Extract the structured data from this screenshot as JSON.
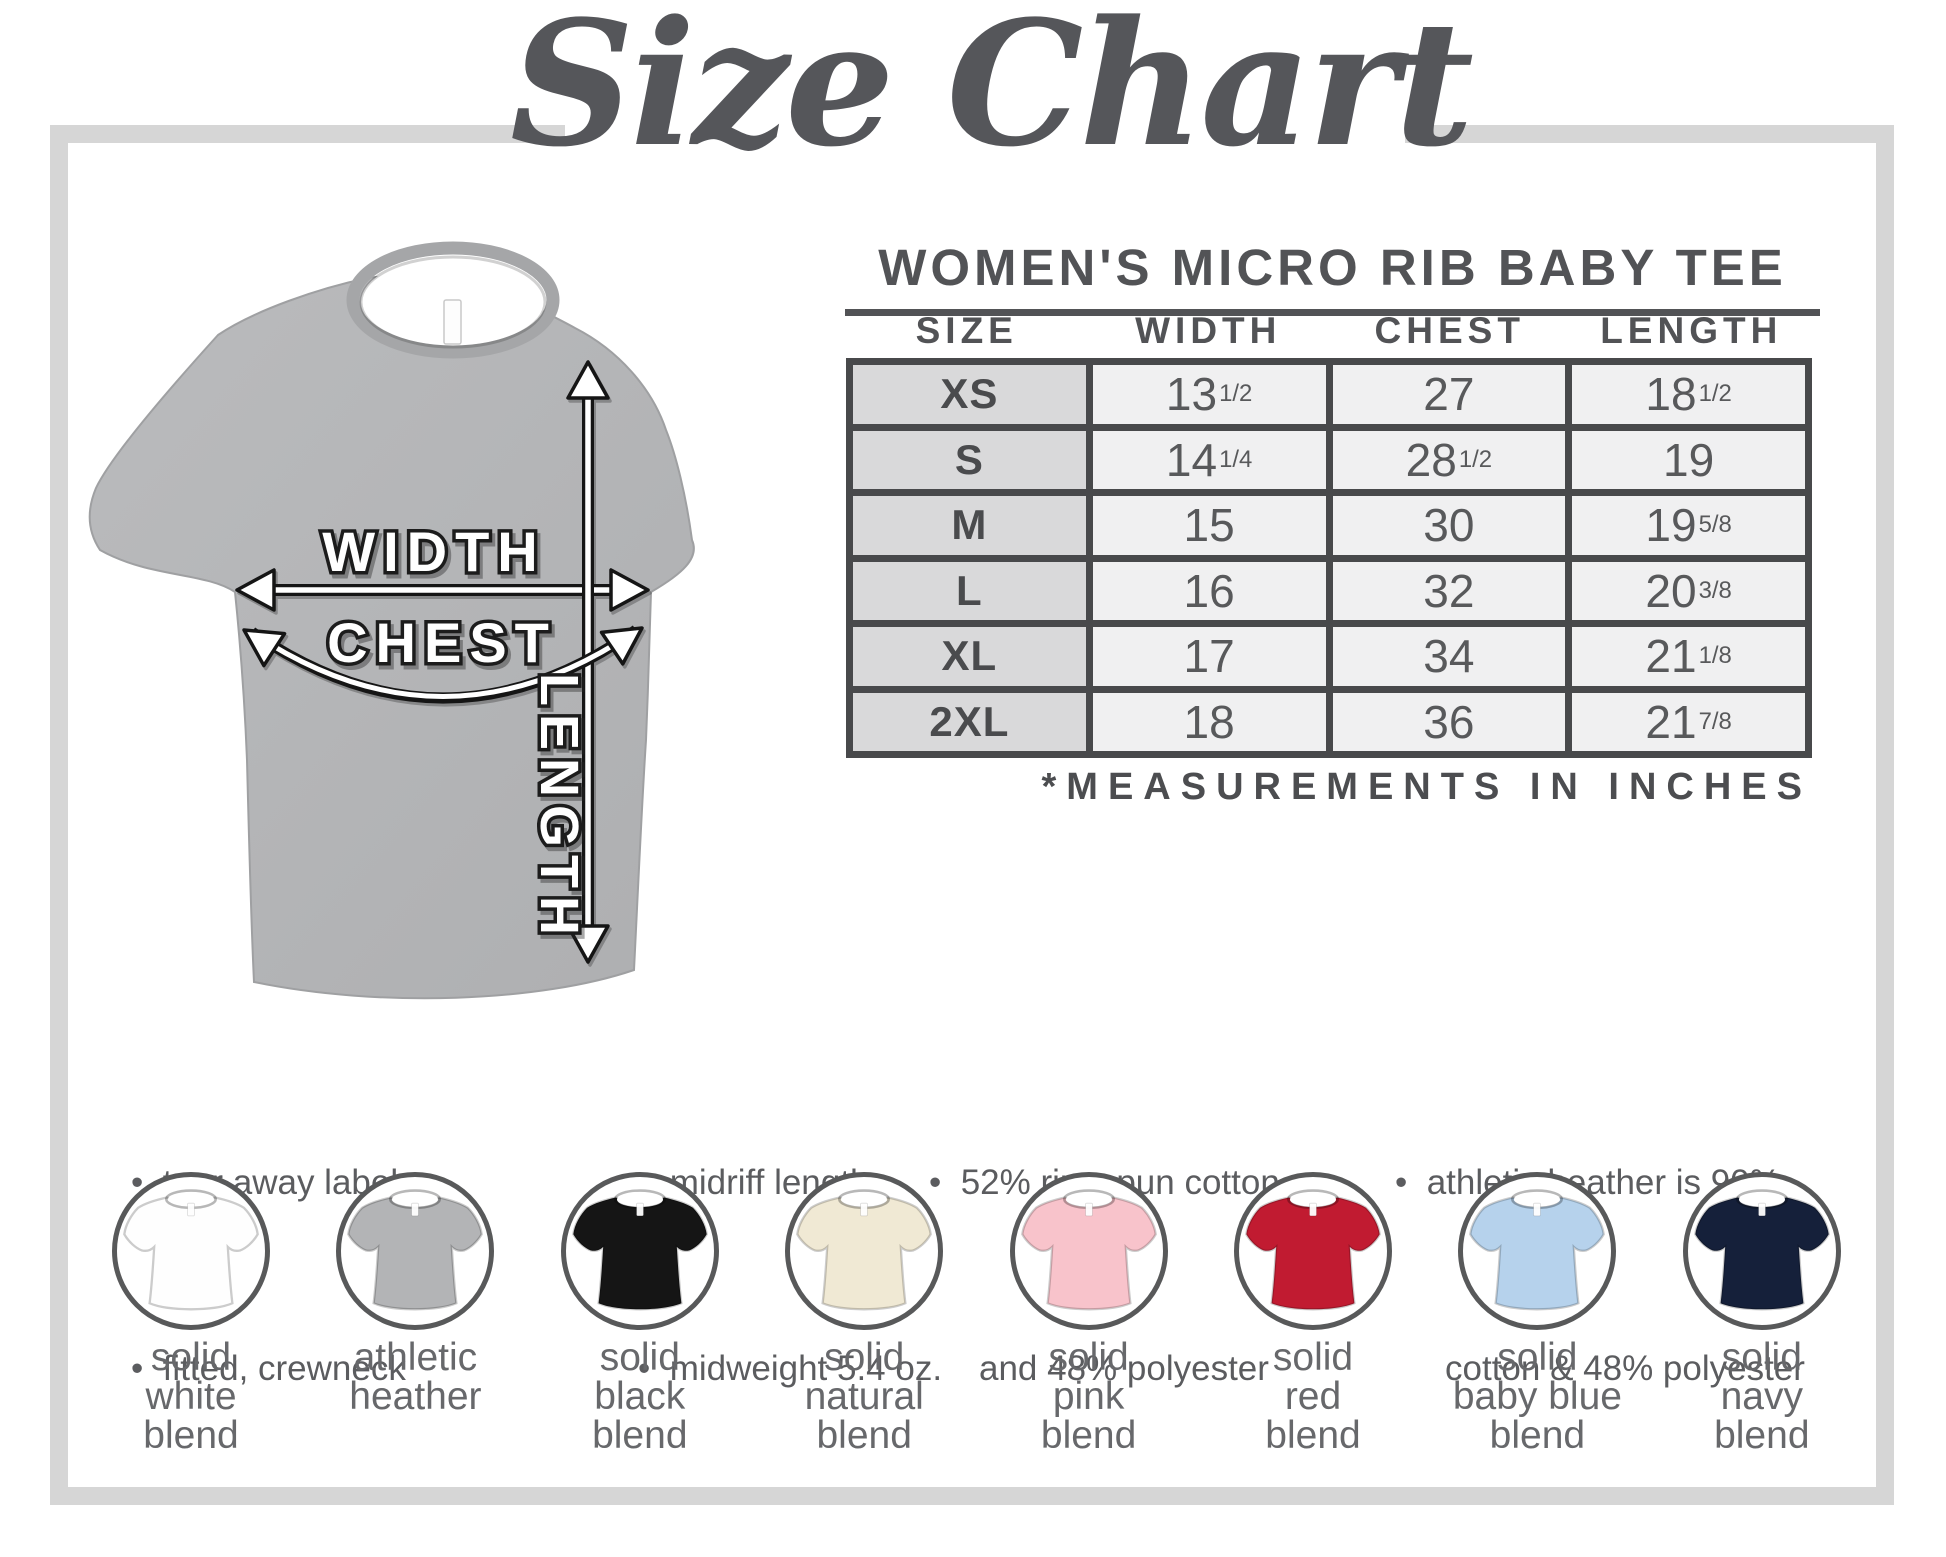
{
  "title": "Size Chart",
  "product": {
    "subtitle": "WOMEN'S MICRO RIB BABY TEE",
    "note": "*MEASUREMENTS IN INCHES"
  },
  "diagram": {
    "labels": {
      "width": "WIDTH",
      "chest": "CHEST",
      "length": "LENGTH"
    }
  },
  "table": {
    "headers": [
      "SIZE",
      "WIDTH",
      "CHEST",
      "LENGTH"
    ],
    "rows": [
      {
        "size": "XS",
        "width": "13",
        "width_frac": "1/2",
        "chest": "27",
        "chest_frac": "",
        "length": "18",
        "length_frac": "1/2"
      },
      {
        "size": "S",
        "width": "14",
        "width_frac": "1/4",
        "chest": "28",
        "chest_frac": "1/2",
        "length": "19",
        "length_frac": ""
      },
      {
        "size": "M",
        "width": "15",
        "width_frac": "",
        "chest": "30",
        "chest_frac": "",
        "length": "19",
        "length_frac": "5/8"
      },
      {
        "size": "L",
        "width": "16",
        "width_frac": "",
        "chest": "32",
        "chest_frac": "",
        "length": "20",
        "length_frac": "3/8"
      },
      {
        "size": "XL",
        "width": "17",
        "width_frac": "",
        "chest": "34",
        "chest_frac": "",
        "length": "21",
        "length_frac": "1/8"
      },
      {
        "size": "2XL",
        "width": "18",
        "width_frac": "",
        "chest": "36",
        "chest_frac": "",
        "length": "21",
        "length_frac": "7/8"
      }
    ]
  },
  "features": {
    "col1": {
      "line1": "•  tear away label",
      "line2": "•  fitted, crewneck"
    },
    "col2": {
      "line1": "•  midriff length",
      "line2": "•  midweight 5.4 oz."
    },
    "col3": {
      "line1": "•  52% ringspun cotton",
      "line2": "and 48% polyester"
    },
    "col4": {
      "line1": "•  athletic heather is 90%",
      "line2": "cotton & 48% polyester"
    }
  },
  "colors": [
    {
      "name_lines": [
        "solid",
        "white",
        "blend"
      ],
      "hex": "#fefefe"
    },
    {
      "name_lines": [
        "athletic",
        "heather"
      ],
      "hex": "#b3b4b6"
    },
    {
      "name_lines": [
        "solid",
        "black",
        "blend"
      ],
      "hex": "#151515"
    },
    {
      "name_lines": [
        "solid",
        "natural",
        "blend"
      ],
      "hex": "#f0e9d4"
    },
    {
      "name_lines": [
        "solid",
        "pink",
        "blend"
      ],
      "hex": "#f8c3cb"
    },
    {
      "name_lines": [
        "solid",
        "red",
        "blend"
      ],
      "hex": "#c11b31"
    },
    {
      "name_lines": [
        "solid",
        "baby blue",
        "blend"
      ],
      "hex": "#b6d2ec"
    },
    {
      "name_lines": [
        "solid",
        "navy",
        "blend"
      ],
      "hex": "#15203a"
    }
  ],
  "palette": {
    "frame": "#d6d6d6",
    "ink": "#525356",
    "table_border": "#48494b",
    "size_col_bg": "#d9d9da",
    "cell_bg": "#f0f0f1",
    "tee_heather": "#b3b4b6",
    "label_gray": "#67686b"
  }
}
